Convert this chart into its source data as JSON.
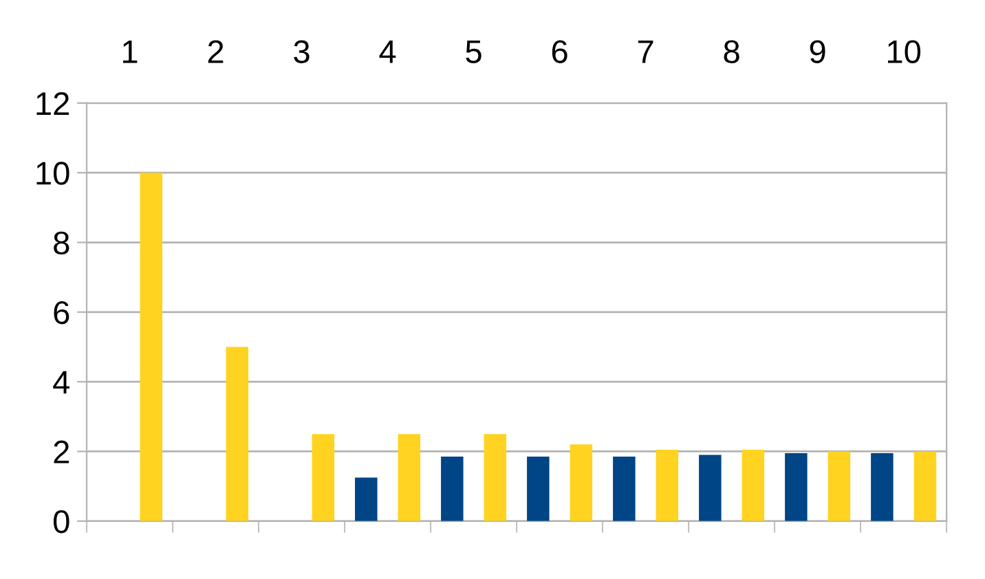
{
  "chart_data": {
    "type": "bar",
    "categories": [
      "1",
      "2",
      "3",
      "4",
      "5",
      "6",
      "7",
      "8",
      "9",
      "10"
    ],
    "series": [
      {
        "color": "#004586",
        "values": [
          null,
          null,
          null,
          1.25,
          1.85,
          1.85,
          1.85,
          1.9,
          1.95,
          1.95
        ]
      },
      {
        "color": "#ffd320",
        "values": [
          10,
          5,
          2.5,
          2.5,
          2.5,
          2.2,
          2.05,
          2.05,
          2.0,
          2.0
        ]
      }
    ],
    "ylim": [
      0,
      12
    ],
    "yticks": [
      0,
      2,
      4,
      6,
      8,
      10,
      12
    ],
    "grid": "y",
    "legend": false
  }
}
